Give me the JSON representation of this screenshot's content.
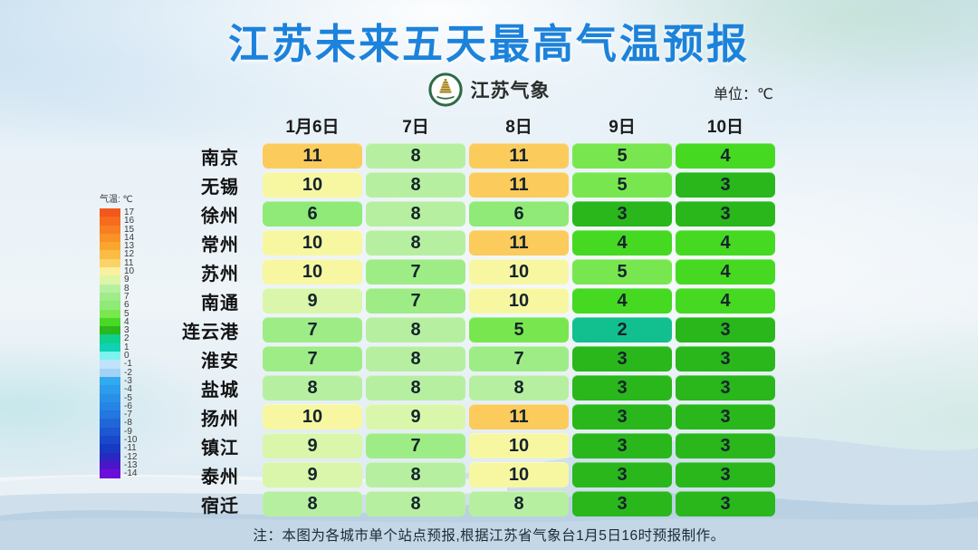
{
  "header": {
    "title": "江苏未来五天最高气温预报",
    "logo_text": "江苏气象",
    "unit_label": "单位：℃"
  },
  "chart_data": {
    "type": "heatmap",
    "title": "江苏未来五天最高气温预报",
    "unit": "℃",
    "columns": [
      "1月6日",
      "7日",
      "8日",
      "9日",
      "10日"
    ],
    "rows": [
      {
        "city": "南京",
        "values": [
          11,
          8,
          11,
          5,
          4
        ]
      },
      {
        "city": "无锡",
        "values": [
          10,
          8,
          11,
          5,
          3
        ]
      },
      {
        "city": "徐州",
        "values": [
          6,
          8,
          6,
          3,
          3
        ]
      },
      {
        "city": "常州",
        "values": [
          10,
          8,
          11,
          4,
          4
        ]
      },
      {
        "city": "苏州",
        "values": [
          10,
          7,
          10,
          5,
          4
        ]
      },
      {
        "city": "南通",
        "values": [
          9,
          7,
          10,
          4,
          4
        ]
      },
      {
        "city": "连云港",
        "values": [
          7,
          8,
          5,
          2,
          3
        ]
      },
      {
        "city": "淮安",
        "values": [
          7,
          8,
          7,
          3,
          3
        ]
      },
      {
        "city": "盐城",
        "values": [
          8,
          8,
          8,
          3,
          3
        ]
      },
      {
        "city": "扬州",
        "values": [
          10,
          9,
          11,
          3,
          3
        ]
      },
      {
        "city": "镇江",
        "values": [
          9,
          7,
          10,
          3,
          3
        ]
      },
      {
        "city": "泰州",
        "values": [
          9,
          8,
          10,
          3,
          3
        ]
      },
      {
        "city": "宿迁",
        "values": [
          8,
          8,
          8,
          3,
          3
        ]
      }
    ],
    "value_range": [
      -14,
      17
    ],
    "legend_position": "left"
  },
  "legend": {
    "title": "气温: ℃",
    "stops": [
      {
        "value": 17,
        "color": "#f3571c"
      },
      {
        "value": 16,
        "color": "#f66b1d"
      },
      {
        "value": 15,
        "color": "#f87e22"
      },
      {
        "value": 14,
        "color": "#fa9227"
      },
      {
        "value": 13,
        "color": "#faa52e"
      },
      {
        "value": 12,
        "color": "#fbbc45"
      },
      {
        "value": 11,
        "color": "#fbd368"
      },
      {
        "value": 10,
        "color": "#faf0a0"
      },
      {
        "value": 9,
        "color": "#ddf6a6"
      },
      {
        "value": 8,
        "color": "#b7efa0"
      },
      {
        "value": 7,
        "color": "#9fec88"
      },
      {
        "value": 6,
        "color": "#8fea77"
      },
      {
        "value": 5,
        "color": "#7ae74f"
      },
      {
        "value": 4,
        "color": "#47d926"
      },
      {
        "value": 3,
        "color": "#2ab81d"
      },
      {
        "value": 2,
        "color": "#0fd08c"
      },
      {
        "value": 1,
        "color": "#0fd2b4"
      },
      {
        "value": 0,
        "color": "#7df2ef"
      },
      {
        "value": -1,
        "color": "#bfe3f9"
      },
      {
        "value": -2,
        "color": "#a2d2f6"
      },
      {
        "value": -3,
        "color": "#32aaf0"
      },
      {
        "value": -4,
        "color": "#2c9cec"
      },
      {
        "value": -5,
        "color": "#2990e8"
      },
      {
        "value": -6,
        "color": "#2684e4"
      },
      {
        "value": -7,
        "color": "#2377e0"
      },
      {
        "value": -8,
        "color": "#2066d9"
      },
      {
        "value": -9,
        "color": "#1d57d2"
      },
      {
        "value": -10,
        "color": "#1a48ca"
      },
      {
        "value": -11,
        "color": "#173ac4"
      },
      {
        "value": -12,
        "color": "#2a28c0"
      },
      {
        "value": -13,
        "color": "#4b16c9"
      },
      {
        "value": -14,
        "color": "#6a0ed8"
      }
    ]
  },
  "footer": {
    "note": "注：本图为各城市单个站点预报,根据江苏省气象台1月5日16时预报制作。"
  },
  "colors": {
    "title": "#1c82db",
    "cell_text": "#15242b",
    "value_colors": {
      "2": "#12c08f",
      "3": "#29b71c",
      "4": "#45d922",
      "5": "#78e74f",
      "6": "#8fea77",
      "7": "#9eec86",
      "8": "#b7efa0",
      "9": "#daf6aa",
      "10": "#f7f7a2",
      "11": "#fbcb5c"
    }
  }
}
